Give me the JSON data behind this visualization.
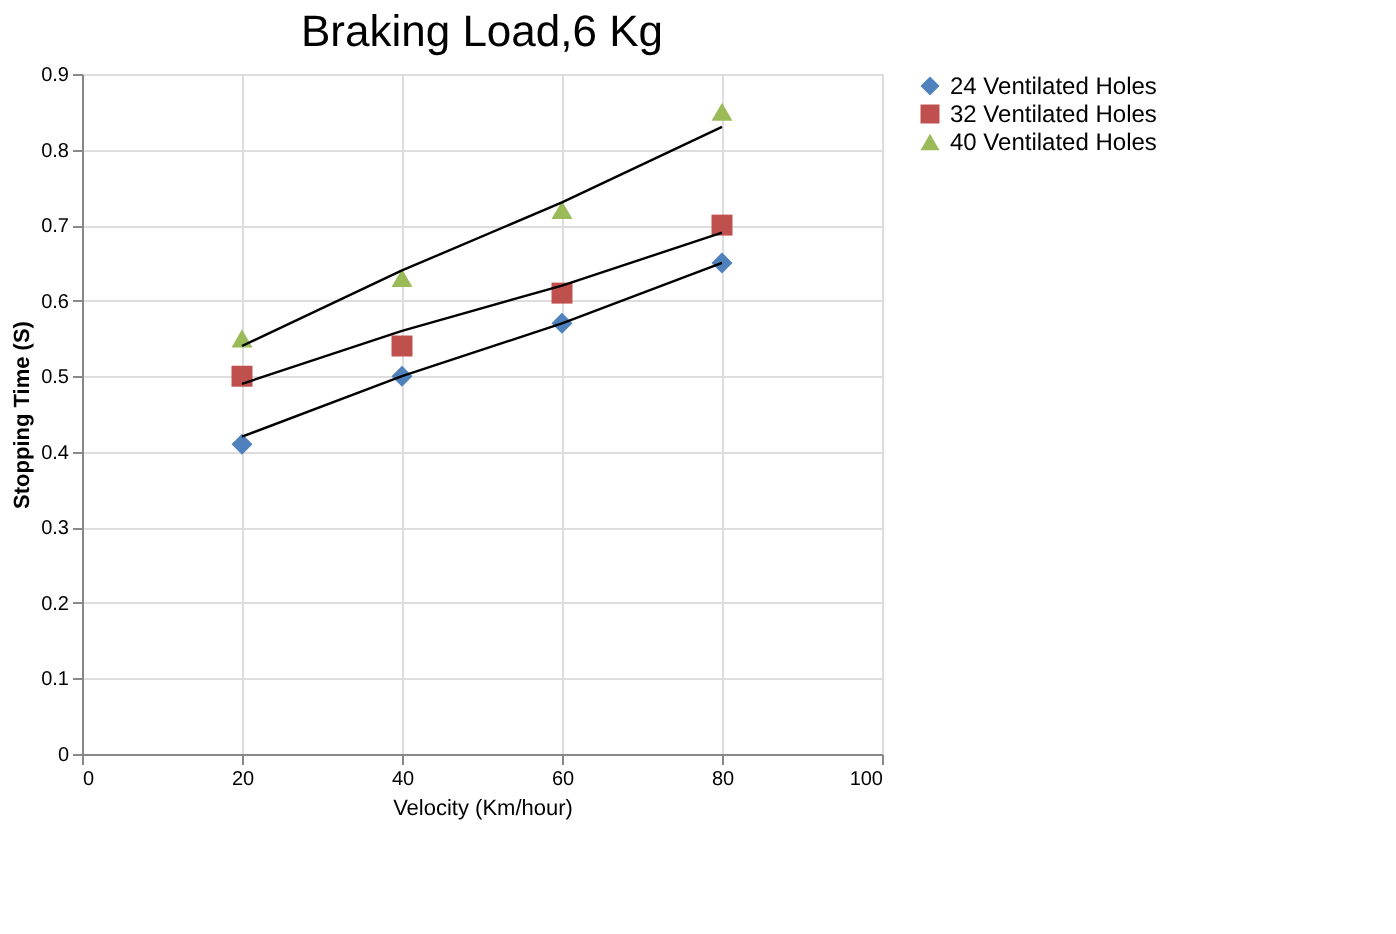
{
  "chart_data": {
    "type": "scatter",
    "title": "Braking Load,6 Kg",
    "xlabel": "Velocity (Km/hour)",
    "ylabel": "Stopping Time (S)",
    "x": [
      20,
      40,
      60,
      80
    ],
    "xlim": [
      0,
      100
    ],
    "xticks": [
      0,
      20,
      40,
      60,
      80,
      100
    ],
    "ylim": [
      0,
      0.9
    ],
    "yticks": [
      0,
      0.1,
      0.2,
      0.3,
      0.4,
      0.5,
      0.6,
      0.7,
      0.8,
      0.9
    ],
    "grid": true,
    "legend": "right",
    "series": [
      {
        "name": "24 Ventilated Holes",
        "color": "#4f81bd",
        "marker": "diamond",
        "values": [
          0.41,
          0.5,
          0.57,
          0.65
        ]
      },
      {
        "name": "32 Ventilated Holes",
        "color": "#c0504d",
        "marker": "square",
        "values": [
          0.5,
          0.54,
          0.61,
          0.7
        ]
      },
      {
        "name": "40 Ventilated Holes",
        "color": "#9bbb59",
        "marker": "triangle",
        "values": [
          0.55,
          0.63,
          0.72,
          0.85
        ]
      },
      {
        "type": "line",
        "color": "#000000",
        "marker": "none",
        "values": [
          0.42,
          0.5,
          0.57,
          0.65
        ]
      },
      {
        "type": "line",
        "color": "#000000",
        "marker": "none",
        "values": [
          0.49,
          0.56,
          0.62,
          0.69
        ]
      },
      {
        "type": "line",
        "color": "#000000",
        "marker": "none",
        "values": [
          0.54,
          0.64,
          0.73,
          0.83
        ]
      }
    ]
  }
}
